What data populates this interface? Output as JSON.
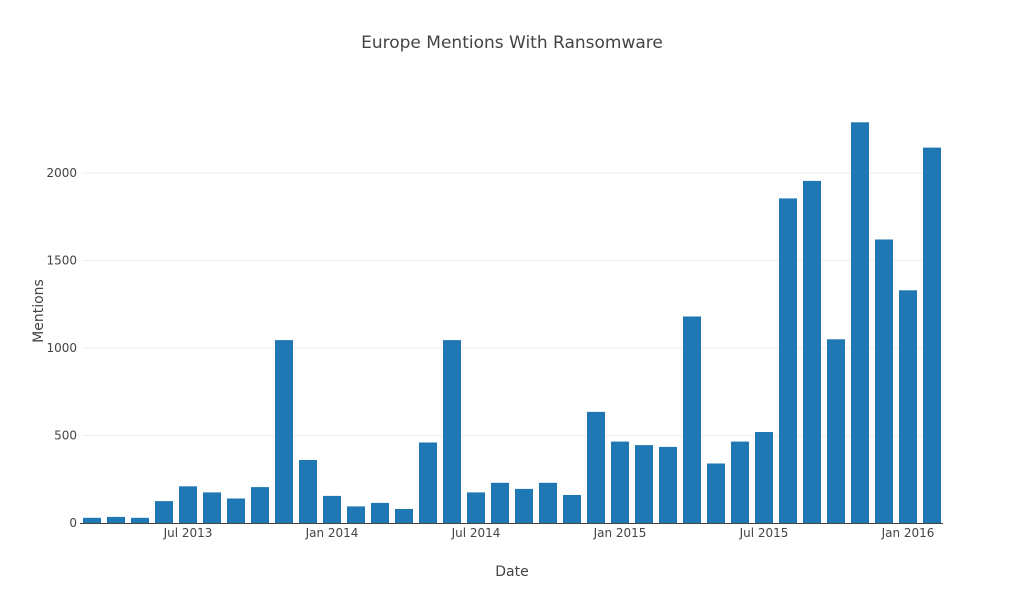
{
  "chart_data": {
    "type": "bar",
    "title": "Europe Mentions With Ransomware",
    "xlabel": "Date",
    "ylabel": "Mentions",
    "ylim": [
      0,
      2300
    ],
    "yticks": [
      0,
      500,
      1000,
      1500,
      2000
    ],
    "xticks": [
      {
        "date": "2013-07",
        "label": "Jul 2013"
      },
      {
        "date": "2014-01",
        "label": "Jan 2014"
      },
      {
        "date": "2014-07",
        "label": "Jul 2014"
      },
      {
        "date": "2015-01",
        "label": "Jan 2015"
      },
      {
        "date": "2015-07",
        "label": "Jul 2015"
      },
      {
        "date": "2016-01",
        "label": "Jan 2016"
      }
    ],
    "grid": "horizontal",
    "bar_color": "#1f77b4",
    "categories": [
      "2013-03",
      "2013-04",
      "2013-05",
      "2013-06",
      "2013-07",
      "2013-08",
      "2013-09",
      "2013-10",
      "2013-11",
      "2013-12",
      "2014-01",
      "2014-02",
      "2014-03",
      "2014-04",
      "2014-05",
      "2014-06",
      "2014-07",
      "2014-08",
      "2014-09",
      "2014-10",
      "2014-11",
      "2014-12",
      "2015-01",
      "2015-02",
      "2015-03",
      "2015-04",
      "2015-05",
      "2015-06",
      "2015-07",
      "2015-08",
      "2015-09",
      "2015-10",
      "2015-11",
      "2015-12",
      "2016-01",
      "2016-02"
    ],
    "values": [
      30,
      35,
      30,
      125,
      210,
      175,
      140,
      205,
      1045,
      360,
      155,
      95,
      115,
      80,
      460,
      1045,
      175,
      230,
      195,
      230,
      160,
      635,
      465,
      445,
      435,
      1180,
      340,
      465,
      520,
      1855,
      1955,
      1050,
      2290,
      1620,
      1330,
      2145
    ]
  }
}
